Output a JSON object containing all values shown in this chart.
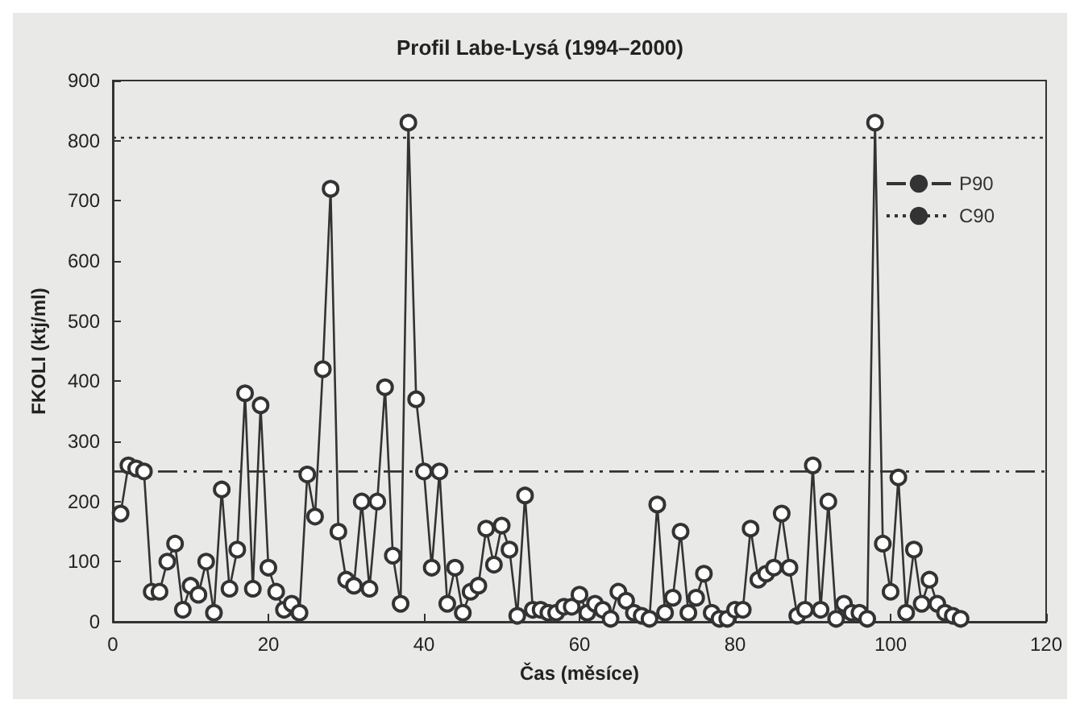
{
  "chart_data": {
    "type": "line",
    "title": "Profil Labe-Lysá (1994–2000)",
    "xlabel": "Čas (měsíce)",
    "ylabel": "FKOLI (ktj/ml)",
    "x": [
      1,
      2,
      3,
      4,
      5,
      6,
      7,
      8,
      9,
      10,
      11,
      12,
      13,
      14,
      15,
      16,
      17,
      18,
      19,
      20,
      21,
      22,
      23,
      24,
      25,
      26,
      27,
      28,
      29,
      30,
      31,
      32,
      33,
      34,
      35,
      36,
      37,
      38,
      39,
      40,
      41,
      42,
      43,
      44,
      45,
      46,
      47,
      48,
      49,
      50,
      51,
      52,
      53,
      54,
      55,
      56,
      57,
      58,
      59,
      60,
      61,
      62,
      63,
      64,
      65,
      66,
      67,
      68,
      69,
      70,
      71,
      72,
      73,
      74,
      75,
      76,
      77,
      78,
      79,
      80,
      81,
      82,
      83,
      84,
      85,
      86,
      87,
      88,
      89,
      90,
      91,
      92,
      93,
      94,
      95,
      96,
      97,
      98,
      99,
      100,
      101,
      102,
      103,
      104,
      105,
      106,
      107,
      108,
      109
    ],
    "series": [
      {
        "color": "#333333",
        "values": [
          180,
          260,
          255,
          250,
          50,
          50,
          100,
          130,
          20,
          60,
          45,
          100,
          15,
          220,
          55,
          120,
          380,
          55,
          360,
          90,
          50,
          20,
          30,
          15,
          245,
          175,
          420,
          720,
          150,
          70,
          60,
          200,
          55,
          200,
          390,
          110,
          30,
          830,
          370,
          250,
          90,
          250,
          30,
          90,
          15,
          50,
          60,
          155,
          95,
          160,
          120,
          10,
          210,
          20,
          20,
          15,
          15,
          25,
          25,
          45,
          15,
          30,
          20,
          5,
          50,
          35,
          15,
          10,
          5,
          195,
          15,
          40,
          150,
          15,
          40,
          80,
          15,
          5,
          5,
          20,
          20,
          155,
          70,
          80,
          90,
          180,
          90,
          10,
          20,
          260,
          20,
          200,
          5,
          30,
          15,
          15,
          5,
          830,
          130,
          50,
          240,
          15,
          120,
          30,
          70,
          30,
          15,
          10,
          5
        ]
      }
    ],
    "xlim": [
      0,
      120
    ],
    "xticks": [
      0,
      20,
      40,
      60,
      80,
      100,
      120
    ],
    "ylim": [
      0,
      900
    ],
    "yticks": [
      0,
      100,
      200,
      300,
      400,
      500,
      600,
      700,
      800,
      900
    ],
    "ref_lines": [
      {
        "axis": "y",
        "value": 250,
        "label": "P90",
        "line_style": "dashdot",
        "color": "#333333"
      },
      {
        "axis": "y",
        "value": 805,
        "label": "C90",
        "line_style": "dotted",
        "color": "#333333"
      }
    ],
    "marker": "circle",
    "line_style": "solid",
    "grid": false,
    "legend": "top right"
  }
}
